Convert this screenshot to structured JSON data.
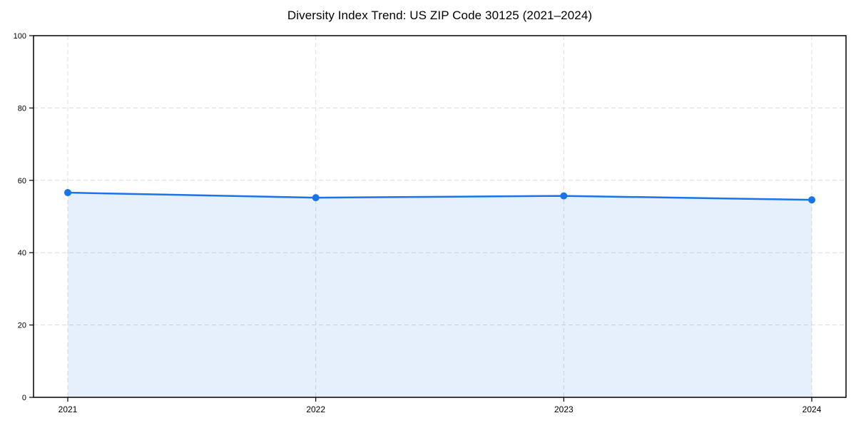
{
  "chart_data": {
    "type": "area",
    "title": "Diversity Index Trend: US ZIP Code 30125 (2021–2024)",
    "categories": [
      "2021",
      "2022",
      "2023",
      "2024"
    ],
    "series": [
      {
        "name": "Diversity Index",
        "values": [
          56.6,
          55.2,
          55.7,
          54.6
        ]
      }
    ],
    "xlabel": "",
    "ylabel": "",
    "ylim": [
      0,
      100
    ],
    "yticks": [
      0,
      20,
      40,
      60,
      80,
      100
    ],
    "grid": "dashed horizontal and vertical",
    "legend_position": "none",
    "colors": {
      "line": "#1a73e8",
      "marker": "#1a73e8",
      "fill": "#1a73e8",
      "fill_opacity": 0.11,
      "grid": "#dcdcdc",
      "frame": "#000000",
      "tick_label": "#000000",
      "background": "#ffffff"
    }
  }
}
